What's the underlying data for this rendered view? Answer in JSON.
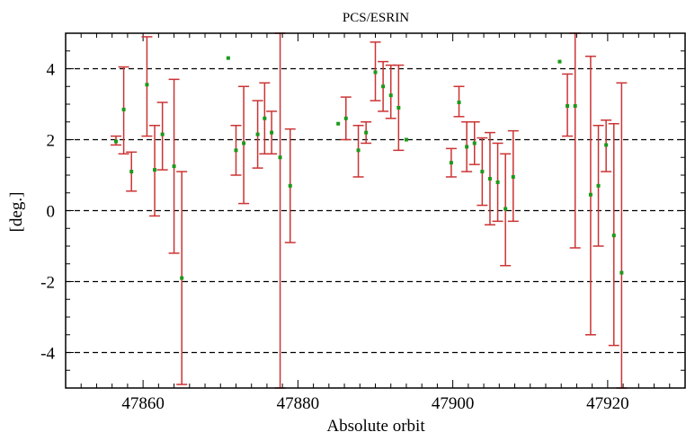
{
  "chart_data": {
    "type": "scatter",
    "title": "PCS/ESRIN",
    "xlabel": "Absolute orbit",
    "ylabel": "[deg.]",
    "xlim": [
      47850,
      47930
    ],
    "ylim": [
      -5,
      5
    ],
    "x_ticks": [
      47860,
      47880,
      47900,
      47920
    ],
    "x_tick_labels": [
      "47860",
      "47880",
      "47900",
      "47920"
    ],
    "x_minor_step": 2,
    "y_ticks": [
      4,
      2,
      0,
      -2,
      -4
    ],
    "y_tick_labels": [
      "4",
      "2",
      "0",
      "-2",
      "-4"
    ],
    "y_minor_step": 0.5,
    "grid": "dashed horizontal at major y ticks",
    "error_bars": true,
    "colors": {
      "marker": "#1a9a1a",
      "error_bar": "#cc3333",
      "grid": "#000000"
    },
    "points": [
      {
        "x": 47856.5,
        "y": 1.95,
        "lo": 1.85,
        "hi": 2.1
      },
      {
        "x": 47857.5,
        "y": 2.85,
        "lo": 1.6,
        "hi": 4.05
      },
      {
        "x": 47858.5,
        "y": 1.1,
        "lo": 0.55,
        "hi": 1.65
      },
      {
        "x": 47860.5,
        "y": 3.55,
        "lo": 2.1,
        "hi": 4.9
      },
      {
        "x": 47861.5,
        "y": 1.15,
        "lo": -0.15,
        "hi": 2.4
      },
      {
        "x": 47862.5,
        "y": 2.15,
        "lo": 1.15,
        "hi": 3.05
      },
      {
        "x": 47864,
        "y": 1.25,
        "lo": -1.2,
        "hi": 3.7
      },
      {
        "x": 47865,
        "y": -1.9,
        "lo": -4.9,
        "hi": 1.1
      },
      {
        "x": 47871,
        "y": 4.3
      },
      {
        "x": 47872,
        "y": 1.7,
        "lo": 1.0,
        "hi": 2.4
      },
      {
        "x": 47873,
        "y": 1.9,
        "lo": 0.2,
        "hi": 3.5
      },
      {
        "x": 47874.8,
        "y": 2.15,
        "lo": 1.2,
        "hi": 3.1
      },
      {
        "x": 47875.7,
        "y": 2.6,
        "lo": 1.6,
        "hi": 3.6
      },
      {
        "x": 47876.6,
        "y": 2.2,
        "lo": 1.6,
        "hi": 2.8
      },
      {
        "x": 47877.7,
        "y": 1.5,
        "lo": -5,
        "hi": 5
      },
      {
        "x": 47879,
        "y": 0.7,
        "lo": -0.9,
        "hi": 2.3
      },
      {
        "x": 47885.2,
        "y": 2.45
      },
      {
        "x": 47886.2,
        "y": 2.6,
        "lo": 2.0,
        "hi": 3.2
      },
      {
        "x": 47887.8,
        "y": 1.7,
        "lo": 0.95,
        "hi": 2.4
      },
      {
        "x": 47888.8,
        "y": 2.2,
        "lo": 1.9,
        "hi": 2.5
      },
      {
        "x": 47890,
        "y": 3.9,
        "lo": 3.1,
        "hi": 4.75
      },
      {
        "x": 47891,
        "y": 3.5,
        "lo": 2.8,
        "hi": 4.2
      },
      {
        "x": 47892,
        "y": 3.25,
        "lo": 2.6,
        "hi": 4.1
      },
      {
        "x": 47893,
        "y": 2.9,
        "lo": 1.7,
        "hi": 4.1
      },
      {
        "x": 47894,
        "y": 2.0
      },
      {
        "x": 47899.8,
        "y": 1.35,
        "lo": 0.95,
        "hi": 1.75
      },
      {
        "x": 47900.8,
        "y": 3.05,
        "lo": 2.65,
        "hi": 3.5
      },
      {
        "x": 47901.8,
        "y": 1.8,
        "lo": 1.1,
        "hi": 2.5
      },
      {
        "x": 47902.8,
        "y": 1.9,
        "lo": 1.3,
        "hi": 2.5
      },
      {
        "x": 47903.8,
        "y": 1.1,
        "lo": 0.15,
        "hi": 2.05
      },
      {
        "x": 47904.8,
        "y": 0.9,
        "lo": -0.4,
        "hi": 2.2
      },
      {
        "x": 47905.8,
        "y": 0.8,
        "lo": -0.3,
        "hi": 1.9
      },
      {
        "x": 47906.8,
        "y": 0.05,
        "lo": -1.55,
        "hi": 1.6
      },
      {
        "x": 47907.8,
        "y": 0.95,
        "lo": -0.3,
        "hi": 2.25
      },
      {
        "x": 47913.8,
        "y": 4.2
      },
      {
        "x": 47914.8,
        "y": 2.95,
        "lo": 2.1,
        "hi": 3.85
      },
      {
        "x": 47915.8,
        "y": 2.95,
        "lo": -1.05,
        "hi": 5
      },
      {
        "x": 47917.8,
        "y": 0.45,
        "lo": -3.5,
        "hi": 4.35
      },
      {
        "x": 47918.8,
        "y": 0.7,
        "lo": -1.0,
        "hi": 2.4
      },
      {
        "x": 47919.8,
        "y": 1.85,
        "lo": 1.1,
        "hi": 2.55
      },
      {
        "x": 47920.8,
        "y": -0.7,
        "lo": -3.8,
        "hi": 2.45
      },
      {
        "x": 47921.8,
        "y": -1.75,
        "lo": -5,
        "hi": 3.6
      }
    ]
  }
}
